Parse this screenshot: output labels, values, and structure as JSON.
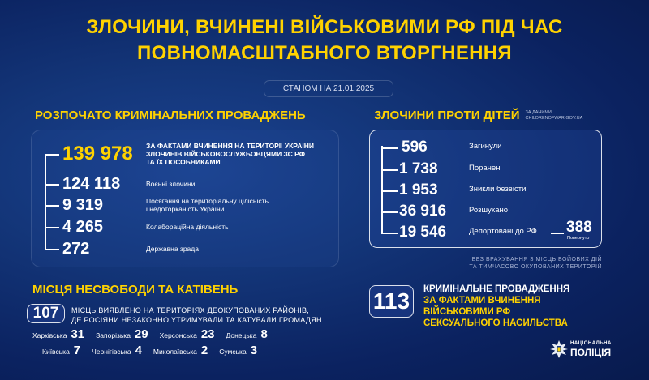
{
  "title": {
    "line1": "ЗЛОЧИНИ, ВЧИНЕНІ ВІЙСЬКОВИМИ РФ ПІД ЧАС",
    "line2": "ПОВНОМАСШТАБНОГО ВТОРГНЕННЯ"
  },
  "date": "СТАНОМ НА 21.01.2025",
  "criminal": {
    "heading": "РОЗПОЧАТО КРИМІНАЛЬНИХ ПРОВАДЖЕНЬ",
    "items": [
      {
        "value": "139 978",
        "lines": [
          "ЗА ФАКТАМИ ВЧИНЕННЯ НА ТЕРИТОРІЇ УКРАЇНИ",
          "ЗЛОЧИНІВ ВІЙСЬКОВОСЛУЖБОВЦЯМИ ЗС РФ",
          "ТА ЇХ ПОСОБНИКАМИ"
        ]
      },
      {
        "value": "124 118",
        "lines": [
          "Воєнні злочини"
        ]
      },
      {
        "value": "9 319",
        "lines": [
          "Посягання на територіальну цілісність",
          "і недоторканість України"
        ]
      },
      {
        "value": "4 265",
        "lines": [
          "Колабораційна діяльність"
        ]
      },
      {
        "value": "272",
        "lines": [
          "Державна зрада"
        ]
      }
    ]
  },
  "children": {
    "heading": "ЗЛОЧИНИ ПРОТИ ДІТЕЙ",
    "source": [
      "ЗА ДАНИМИ",
      "CHILDRENOFWAR.GOV.UA"
    ],
    "items": [
      {
        "value": "596",
        "label": "Загинули"
      },
      {
        "value": "1 738",
        "label": "Поранені"
      },
      {
        "value": "1 953",
        "label": "Зникли безвісти"
      },
      {
        "value": "36 916",
        "label": "Розшукано"
      },
      {
        "value": "19 546",
        "label": "Депортовані до РФ"
      }
    ],
    "returned": {
      "value": "388",
      "label": "Повернуто"
    },
    "note": [
      "БЕЗ ВРАХУВАННЯ З МІСЦЬ БОЙОВИХ ДІЙ",
      "ТА ТИМЧАСОВО ОКУПОВАНИХ ТЕРИТОРІЙ"
    ]
  },
  "detention": {
    "heading": "МІСЦЯ НЕСВОБОДИ ТА КАТІВЕНЬ",
    "count": "107",
    "lines": [
      "МІСЦЬ ВИЯВЛЕНО НА ТЕРИТОРІЯХ ДЕОКУПОВАНИХ РАЙОНІВ,",
      "ДЕ РОСІЯНИ НЕЗАКОННО УТРИМУВАЛИ ТА КАТУВАЛИ ГРОМАДЯН"
    ],
    "regions": [
      {
        "name": "Харківська",
        "value": "31"
      },
      {
        "name": "Запорізька",
        "value": "29"
      },
      {
        "name": "Херсонська",
        "value": "23"
      },
      {
        "name": "Донецька",
        "value": "8"
      },
      {
        "name": "Київська",
        "value": "7"
      },
      {
        "name": "Чернігівська",
        "value": "4"
      },
      {
        "name": "Миколаївська",
        "value": "2"
      },
      {
        "name": "Сумська",
        "value": "3"
      }
    ]
  },
  "sexual": {
    "count": "113",
    "line1": "КРИМІНАЛЬНЕ ПРОВАДЖЕННЯ",
    "lines": [
      "ЗА ФАКТАМИ ВЧИНЕННЯ",
      "ВІЙСЬКОВИМИ РФ",
      "СЕКСУАЛЬНОГО НАСИЛЬСТВА"
    ]
  },
  "logo": {
    "line1": "НАЦІОНАЛЬНА",
    "line2": "ПОЛІЦІЯ"
  },
  "colors": {
    "accent": "#ffd200",
    "background": "#0b2260"
  }
}
